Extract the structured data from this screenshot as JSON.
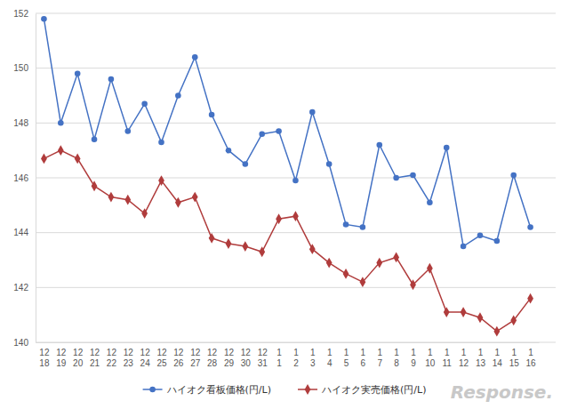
{
  "chart_data": {
    "type": "line",
    "categories": [
      "12\n18",
      "12\n19",
      "12\n20",
      "12\n21",
      "12\n22",
      "12\n23",
      "12\n24",
      "12\n25",
      "12\n26",
      "12\n27",
      "12\n28",
      "12\n29",
      "12\n30",
      "12\n31",
      "1\n1",
      "1\n2",
      "1\n3",
      "1\n4",
      "1\n5",
      "1\n6",
      "1\n7",
      "1\n8",
      "1\n9",
      "1\n10",
      "1\n11",
      "1\n12",
      "1\n13",
      "1\n14",
      "1\n15",
      "1\n16"
    ],
    "series": [
      {
        "name": "ハイオク看板価格(円/L)",
        "color": "#4472c4",
        "marker": "circle",
        "line_style": "solid",
        "values": [
          151.8,
          148.0,
          149.8,
          147.4,
          149.6,
          147.7,
          148.7,
          147.3,
          149.0,
          150.4,
          148.3,
          147.0,
          146.5,
          147.6,
          147.7,
          145.9,
          148.4,
          146.5,
          144.3,
          144.2,
          147.2,
          146.0,
          146.1,
          145.1,
          147.1,
          143.5,
          143.9,
          143.7,
          146.1,
          144.2
        ]
      },
      {
        "name": "ハイオク実売価格(円/L)",
        "color": "#b03c3c",
        "marker": "diamond",
        "line_style": "solid",
        "values": [
          146.7,
          147.0,
          146.7,
          145.7,
          145.3,
          145.2,
          144.7,
          145.9,
          145.1,
          145.3,
          143.8,
          143.6,
          143.5,
          143.3,
          144.5,
          144.6,
          143.4,
          142.9,
          142.5,
          142.2,
          142.9,
          143.1,
          142.1,
          142.7,
          141.1,
          141.1,
          140.9,
          140.4,
          140.8,
          141.6
        ]
      }
    ],
    "ylim": [
      140,
      152
    ],
    "yticks": [
      140,
      142,
      144,
      146,
      148,
      150,
      152
    ],
    "grid": true,
    "legend": "bottom",
    "annotations": [
      "Response."
    ]
  }
}
